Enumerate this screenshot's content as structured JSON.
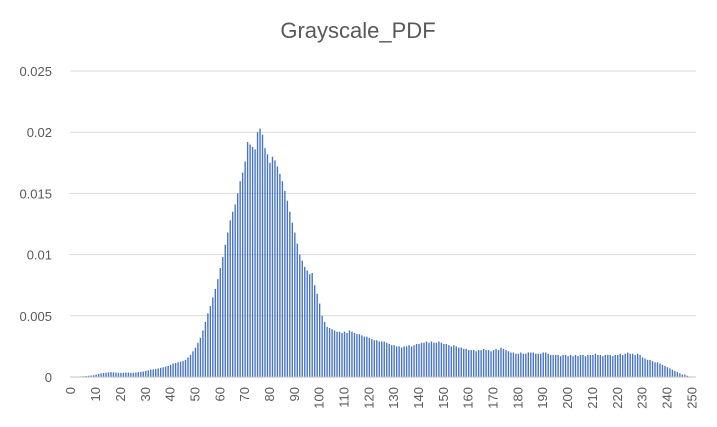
{
  "chart_data": {
    "type": "bar",
    "title": "Grayscale_PDF",
    "xlabel": "",
    "ylabel": "",
    "grid": true,
    "legend": "none",
    "bar_color": "#4472c4",
    "ylim": [
      0,
      0.025
    ],
    "yticks": [
      "0",
      "0.005",
      "0.01",
      "0.015",
      "0.02",
      "0.025"
    ],
    "xticks": [
      "0",
      "10",
      "20",
      "30",
      "40",
      "50",
      "60",
      "70",
      "80",
      "90",
      "100",
      "110",
      "120",
      "130",
      "140",
      "150",
      "160",
      "170",
      "180",
      "190",
      "200",
      "210",
      "220",
      "230",
      "240",
      "250"
    ],
    "x_start": 0,
    "values": [
      0,
      0,
      0,
      3e-05,
      5e-05,
      6e-05,
      8e-05,
      0.0001,
      0.00012,
      0.00015,
      0.0002,
      0.00025,
      0.0003,
      0.00033,
      0.00035,
      0.00038,
      0.0004,
      0.00038,
      0.00036,
      0.00035,
      0.00034,
      0.00035,
      0.00037,
      0.00036,
      0.00034,
      0.00035,
      0.00037,
      0.0004,
      0.00042,
      0.00045,
      0.0005,
      0.00055,
      0.0006,
      0.00062,
      0.00065,
      0.0007,
      0.00075,
      0.0008,
      0.00085,
      0.0009,
      0.001,
      0.0011,
      0.00115,
      0.0012,
      0.00125,
      0.0013,
      0.0014,
      0.0016,
      0.0018,
      0.0021,
      0.0024,
      0.0028,
      0.0032,
      0.0038,
      0.0045,
      0.0052,
      0.0058,
      0.0065,
      0.0072,
      0.008,
      0.0089,
      0.0098,
      0.0108,
      0.0118,
      0.0128,
      0.0135,
      0.0141,
      0.015,
      0.016,
      0.0167,
      0.0176,
      0.0192,
      0.019,
      0.0188,
      0.0186,
      0.02,
      0.0203,
      0.0198,
      0.0187,
      0.0182,
      0.0175,
      0.018,
      0.0177,
      0.0172,
      0.0166,
      0.016,
      0.0152,
      0.0144,
      0.0135,
      0.0126,
      0.0118,
      0.0109,
      0.01,
      0.0095,
      0.009,
      0.0087,
      0.0084,
      0.0085,
      0.0075,
      0.0068,
      0.006,
      0.005,
      0.0045,
      0.0041,
      0.004,
      0.0039,
      0.0038,
      0.0037,
      0.0037,
      0.0036,
      0.0037,
      0.0036,
      0.0038,
      0.0037,
      0.0036,
      0.0035,
      0.0035,
      0.0034,
      0.0033,
      0.0033,
      0.0032,
      0.0031,
      0.003,
      0.003,
      0.0029,
      0.0029,
      0.0029,
      0.0028,
      0.0027,
      0.0026,
      0.0026,
      0.0025,
      0.0025,
      0.0024,
      0.0025,
      0.0025,
      0.0026,
      0.0025,
      0.0026,
      0.0027,
      0.0027,
      0.0028,
      0.0028,
      0.0029,
      0.0028,
      0.0029,
      0.0028,
      0.0028,
      0.0029,
      0.0028,
      0.0027,
      0.0027,
      0.0026,
      0.0025,
      0.0026,
      0.0025,
      0.0024,
      0.0024,
      0.0023,
      0.0023,
      0.0022,
      0.0022,
      0.0022,
      0.0021,
      0.0022,
      0.0022,
      0.0023,
      0.0022,
      0.0022,
      0.0021,
      0.0022,
      0.0023,
      0.0022,
      0.0024,
      0.0023,
      0.0022,
      0.0021,
      0.002,
      0.002,
      0.0019,
      0.0019,
      0.002,
      0.0019,
      0.0019,
      0.002,
      0.002,
      0.002,
      0.0019,
      0.0019,
      0.0019,
      0.002,
      0.002,
      0.0019,
      0.0018,
      0.0018,
      0.0018,
      0.0018,
      0.0017,
      0.0018,
      0.0018,
      0.0017,
      0.0018,
      0.0017,
      0.0018,
      0.0017,
      0.0018,
      0.0018,
      0.0017,
      0.0018,
      0.0018,
      0.0018,
      0.0019,
      0.0018,
      0.0018,
      0.0017,
      0.0018,
      0.0018,
      0.0018,
      0.0017,
      0.0018,
      0.0018,
      0.0019,
      0.0018,
      0.0019,
      0.002,
      0.0019,
      0.0019,
      0.0018,
      0.0019,
      0.0018,
      0.0016,
      0.0015,
      0.0014,
      0.0014,
      0.0013,
      0.0012,
      0.0012,
      0.0011,
      0.001,
      0.0009,
      0.0008,
      0.0007,
      0.0006,
      0.0005,
      0.0004,
      0.0003,
      0.0002,
      0.0002,
      0.0001,
      5e-05,
      3e-05,
      1e-05
    ]
  }
}
